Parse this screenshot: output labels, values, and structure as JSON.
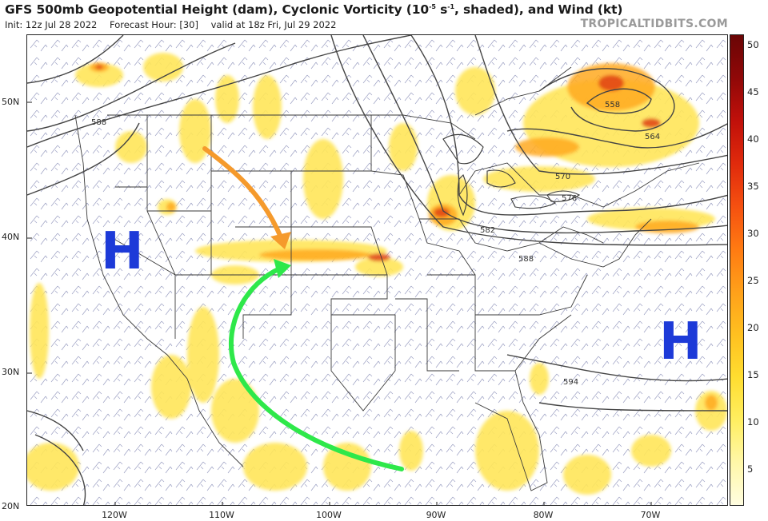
{
  "header": {
    "title_part1": "GFS 500mb Geopotential Height (dam), Cyclonic Vorticity (10",
    "title_sup": "-5",
    "title_part2": " s",
    "title_sup2": "-1",
    "title_part3": ", shaded), and Wind (kt)",
    "init": "Init: 12z Jul 28 2022",
    "forecast_hour": "Forecast Hour: [30]",
    "valid": "valid at 18z Fri, Jul 29 2022",
    "brand": "TROPICALTIDBITS.COM"
  },
  "axes": {
    "lat_labels": [
      "50N",
      "40N",
      "30N",
      "20N"
    ],
    "lon_labels": [
      "120W",
      "110W",
      "100W",
      "90W",
      "80W",
      "70W"
    ]
  },
  "contours": {
    "labels": [
      "588",
      "558",
      "564",
      "570",
      "576",
      "582",
      "588",
      "594"
    ]
  },
  "annotations": {
    "high_left": "H",
    "high_right": "H",
    "orange_arrow_color": "#f59a2c",
    "green_arrow_color": "#2ee84a",
    "high_color": "#1d3ad8"
  },
  "colorbar": {
    "labels": [
      "50",
      "45",
      "40",
      "35",
      "30",
      "25",
      "20",
      "15",
      "10",
      "5"
    ],
    "colors": [
      "#fffde0",
      "#fff7a8",
      "#ffee60",
      "#ffdd30",
      "#ffc020",
      "#ffa01a",
      "#ff7a12",
      "#f55010",
      "#e02a0c",
      "#c0100a",
      "#900808",
      "#6a0505"
    ]
  }
}
